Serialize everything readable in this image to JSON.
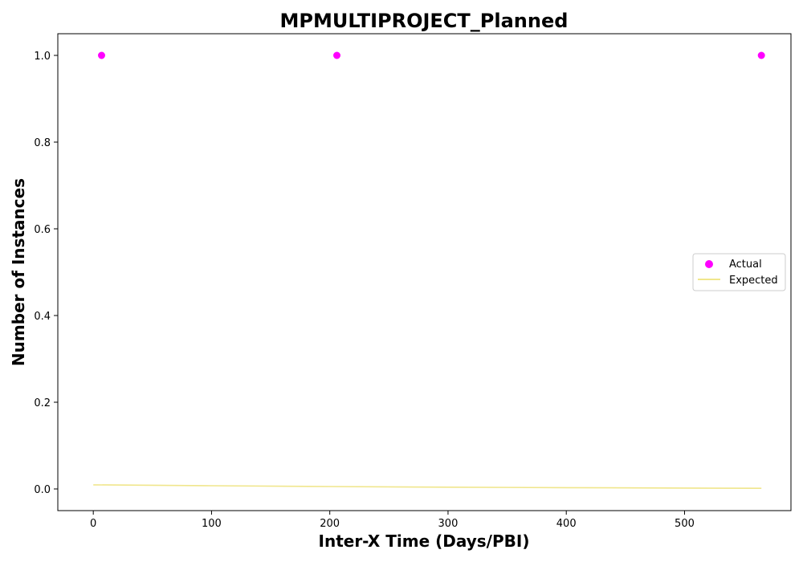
{
  "chart_data": {
    "type": "scatter",
    "title": "MPMULTIPROJECT_Planned",
    "xlabel": "Inter-X Time (Days/PBI)",
    "ylabel": "Number of Instances",
    "xlim": [
      -30,
      590
    ],
    "ylim": [
      -0.05,
      1.05
    ],
    "xticks": [
      0,
      100,
      200,
      300,
      400,
      500
    ],
    "xtick_labels": [
      "0",
      "100",
      "200",
      "300",
      "400",
      "500"
    ],
    "yticks": [
      0.0,
      0.2,
      0.4,
      0.6,
      0.8,
      1.0
    ],
    "ytick_labels": [
      "0.0",
      "0.2",
      "0.4",
      "0.6",
      "0.8",
      "1.0"
    ],
    "grid": false,
    "legend_position": "center-right",
    "series": [
      {
        "name": "Actual",
        "kind": "scatter",
        "color": "#ff00ff",
        "x": [
          7,
          206,
          565
        ],
        "y": [
          1.0,
          1.0,
          1.0
        ]
      },
      {
        "name": "Expected",
        "kind": "line",
        "color": "#f0e68c",
        "x": [
          0,
          100,
          200,
          265,
          300,
          400,
          500,
          565
        ],
        "y": [
          0.0095,
          0.0075,
          0.0055,
          0.0045,
          0.004,
          0.003,
          0.002,
          0.0015
        ]
      }
    ]
  }
}
